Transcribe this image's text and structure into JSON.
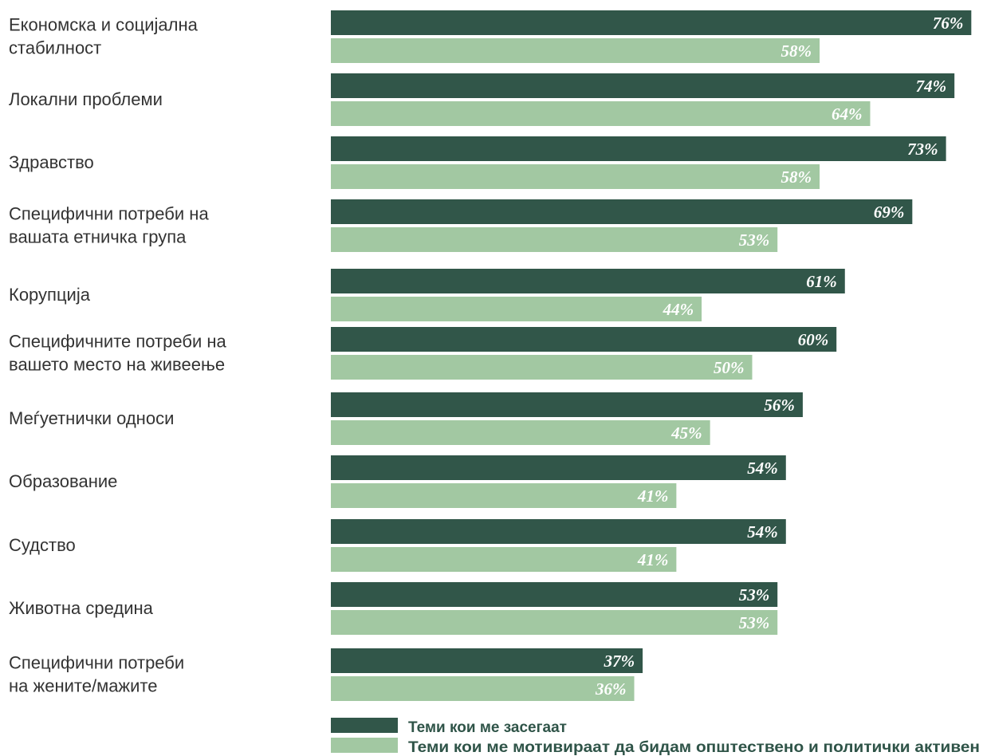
{
  "colors": {
    "series_1": "#315649",
    "series_2": "#a2c8a2"
  },
  "chart_data": {
    "type": "bar",
    "orientation": "horizontal",
    "xlim": [
      0,
      76
    ],
    "grid": false,
    "legend_position": "bottom",
    "categories": [
      [
        "Економска и социјална",
        "стабилност"
      ],
      [
        "Локални проблеми"
      ],
      [
        "Здравство"
      ],
      [
        "Специфични потреби на",
        "вашата етничка група"
      ],
      [
        "Корупција"
      ],
      [
        "Специфичните потреби на",
        "вашето место на живеење"
      ],
      [
        "Меѓуетнички односи"
      ],
      [
        "Образование"
      ],
      [
        "Судство"
      ],
      [
        "Животна средина"
      ],
      [
        "Специфични потреби",
        "на жените/мажите"
      ]
    ],
    "series": [
      {
        "name": "Теми кои ме засегаат",
        "values": [
          76,
          74,
          73,
          69,
          61,
          60,
          56,
          54,
          54,
          53,
          37
        ],
        "labels": [
          "76%",
          "74%",
          "73%",
          "69%",
          "61%",
          "60%",
          "56%",
          "54%",
          "54%",
          "53%",
          "37%"
        ]
      },
      {
        "name": "Теми кои ме мотивираат да бидам општествено и политички активен",
        "values": [
          58,
          64,
          58,
          53,
          44,
          50,
          45,
          41,
          41,
          53,
          36
        ],
        "labels": [
          "58%",
          "64%",
          "58%",
          "53%",
          "44%",
          "50%",
          "45%",
          "41%",
          "41%",
          "53%",
          "36%"
        ]
      }
    ]
  }
}
